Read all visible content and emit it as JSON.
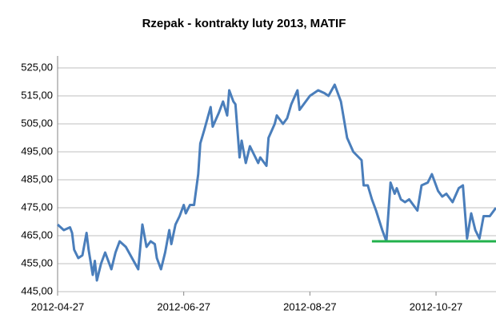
{
  "chart_data": {
    "type": "line",
    "title": "Rzepak - kontrakty luty 2013, MATIF",
    "x": [
      "2012-04-27",
      "2012-04-30",
      "2012-05-03",
      "2012-05-04",
      "2012-05-05",
      "2012-05-07",
      "2012-05-09",
      "2012-05-11",
      "2012-05-12",
      "2012-05-14",
      "2012-05-15",
      "2012-05-16",
      "2012-05-18",
      "2012-05-20",
      "2012-05-23",
      "2012-05-25",
      "2012-05-27",
      "2012-05-30",
      "2012-06-02",
      "2012-06-05",
      "2012-06-07",
      "2012-06-09",
      "2012-06-11",
      "2012-06-13",
      "2012-06-14",
      "2012-06-16",
      "2012-06-18",
      "2012-06-20",
      "2012-06-21",
      "2012-06-23",
      "2012-06-25",
      "2012-06-27",
      "2012-06-28",
      "2012-06-30",
      "2012-07-02",
      "2012-07-04",
      "2012-07-05",
      "2012-07-07",
      "2012-07-10",
      "2012-07-11",
      "2012-07-14",
      "2012-07-16",
      "2012-07-18",
      "2012-07-19",
      "2012-07-21",
      "2012-07-22",
      "2012-07-24",
      "2012-07-25",
      "2012-07-27",
      "2012-07-29",
      "2012-07-31",
      "2012-08-02",
      "2012-08-03",
      "2012-08-06",
      "2012-08-07",
      "2012-08-10",
      "2012-08-11",
      "2012-08-14",
      "2012-08-16",
      "2012-08-18",
      "2012-08-21",
      "2012-08-22",
      "2012-08-24",
      "2012-08-27",
      "2012-08-29",
      "2012-08-31",
      "2012-09-03",
      "2012-09-05",
      "2012-09-08",
      "2012-09-11",
      "2012-09-14",
      "2012-09-17",
      "2012-09-21",
      "2012-09-22",
      "2012-09-24",
      "2012-09-26",
      "2012-09-28",
      "2012-10-01",
      "2012-10-03",
      "2012-10-05",
      "2012-10-07",
      "2012-10-08",
      "2012-10-10",
      "2012-10-12",
      "2012-10-14",
      "2012-10-16",
      "2012-10-18",
      "2012-10-20",
      "2012-10-23",
      "2012-10-25",
      "2012-10-28",
      "2012-10-30",
      "2012-11-01",
      "2012-11-04",
      "2012-11-07",
      "2012-11-09",
      "2012-11-11",
      "2012-11-13",
      "2012-11-15",
      "2012-11-17",
      "2012-11-19",
      "2012-11-22",
      "2012-11-23",
      "2012-11-25"
    ],
    "series": [
      {
        "color": "#4a7ebb",
        "values": [
          469,
          467,
          468,
          466,
          460,
          457,
          458,
          466,
          460,
          451,
          456,
          449,
          455,
          459,
          453,
          459,
          463,
          461,
          457,
          453,
          469,
          461,
          463,
          462,
          457,
          453,
          459,
          467,
          462,
          469,
          472,
          476,
          473,
          476,
          476,
          487,
          498,
          503,
          511,
          504,
          509,
          513,
          508,
          517,
          513,
          512,
          493,
          499,
          491,
          497,
          494,
          491,
          493,
          490,
          500,
          505,
          508,
          505,
          507,
          512,
          517,
          510,
          512,
          515,
          516,
          517,
          516,
          515,
          519,
          513,
          500,
          495,
          492,
          483,
          483,
          478,
          474,
          467,
          463,
          484,
          480,
          482,
          478,
          477,
          478,
          476,
          474,
          483,
          484,
          487,
          481,
          479,
          480,
          477,
          482,
          483,
          464,
          473,
          467,
          464,
          472,
          472,
          473,
          475
        ]
      }
    ],
    "reference_line": {
      "y": 463,
      "x": [
        "2012-09-26",
        "2012-11-25"
      ],
      "color": "#22b14c"
    },
    "xlim": [
      "2012-04-27",
      "2012-11-25"
    ],
    "xticks": [
      "2012-04-27",
      "2012-06-27",
      "2012-08-27",
      "2012-10-27"
    ],
    "ylim": [
      445,
      525
    ],
    "yticks": [
      {
        "value": 445,
        "label": "445,00"
      },
      {
        "value": 455,
        "label": "455,00"
      },
      {
        "value": 465,
        "label": "465,00"
      },
      {
        "value": 475,
        "label": "475,00"
      },
      {
        "value": 485,
        "label": "485,00"
      },
      {
        "value": 495,
        "label": "495,00"
      },
      {
        "value": 505,
        "label": "505,00"
      },
      {
        "value": 515,
        "label": "515,00"
      },
      {
        "value": 525,
        "label": "525,00"
      }
    ],
    "grid": true
  }
}
